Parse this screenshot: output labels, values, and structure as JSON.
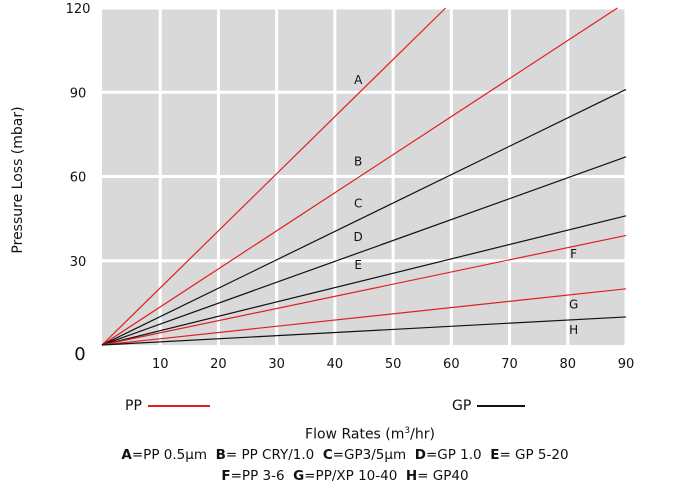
{
  "chart_data": {
    "type": "line",
    "xlabel": "Flow Rates (m",
    "xlabel_sup": "3",
    "xlabel_tail": "/hr)",
    "ylabel": "Pressure Loss (mbar)",
    "xlim": [
      0,
      90
    ],
    "ylim": [
      0,
      120
    ],
    "x_ticks": [
      "10",
      "20",
      "30",
      "40",
      "50",
      "60",
      "70",
      "80",
      "90"
    ],
    "y_ticks": [
      "30",
      "60",
      "90",
      "120"
    ],
    "origin_label": "0",
    "grid": true,
    "background": "#d9d9d9",
    "series": [
      {
        "name": "A",
        "group": "PP",
        "color": "#e02020",
        "points": [
          [
            0,
            0
          ],
          [
            60,
            122
          ]
        ],
        "label_at": [
          44,
          93
        ]
      },
      {
        "name": "B",
        "group": "PP",
        "color": "#e02020",
        "points": [
          [
            0,
            0
          ],
          [
            90,
            122
          ]
        ],
        "label_at": [
          44,
          64
        ]
      },
      {
        "name": "C",
        "group": "GP",
        "color": "#111111",
        "points": [
          [
            0,
            0
          ],
          [
            90,
            91
          ]
        ],
        "label_at": [
          44,
          49
        ]
      },
      {
        "name": "D",
        "group": "GP",
        "color": "#111111",
        "points": [
          [
            0,
            0
          ],
          [
            90,
            67
          ]
        ],
        "label_at": [
          44,
          37
        ]
      },
      {
        "name": "E",
        "group": "GP",
        "color": "#111111",
        "points": [
          [
            0,
            0
          ],
          [
            90,
            46
          ]
        ],
        "label_at": [
          44,
          27
        ]
      },
      {
        "name": "F",
        "group": "PP",
        "color": "#e02020",
        "points": [
          [
            0,
            0
          ],
          [
            90,
            39
          ]
        ],
        "label_at": [
          81,
          31
        ]
      },
      {
        "name": "G",
        "group": "PP",
        "color": "#e02020",
        "points": [
          [
            0,
            0
          ],
          [
            90,
            20
          ]
        ],
        "label_at": [
          81,
          13
        ]
      },
      {
        "name": "H",
        "group": "GP",
        "color": "#111111",
        "points": [
          [
            0,
            0
          ],
          [
            90,
            10
          ]
        ],
        "label_at": [
          81,
          4
        ]
      }
    ],
    "legend": [
      {
        "label": "PP",
        "color": "#e02020"
      },
      {
        "label": "GP",
        "color": "#111111"
      }
    ]
  },
  "key": {
    "line1": [
      {
        "letter": "A",
        "text": "=PP 0.5µm  "
      },
      {
        "letter": "B",
        "text": "= PP CRY/1.0  "
      },
      {
        "letter": "C",
        "text": "=GP3/5µm  "
      },
      {
        "letter": "D",
        "text": "=GP 1.0  "
      },
      {
        "letter": "E",
        "text": "= GP 5-20"
      }
    ],
    "line2": [
      {
        "letter": "F",
        "text": "=PP 3-6  "
      },
      {
        "letter": "G",
        "text": "=PP/XP 10-40  "
      },
      {
        "letter": "H",
        "text": "= GP40"
      }
    ]
  }
}
